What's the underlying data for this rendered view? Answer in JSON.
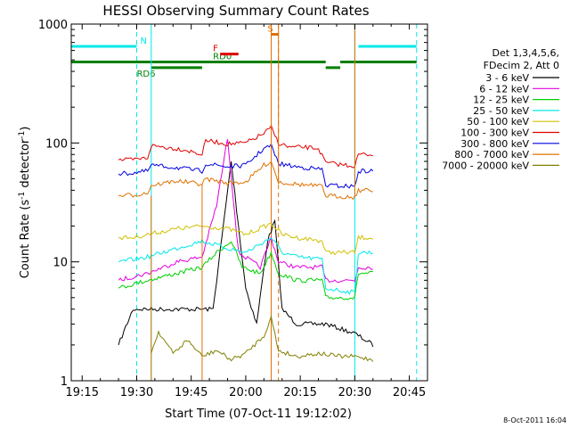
{
  "chart_data": {
    "type": "line",
    "title": "HESSI Observing Summary Count Rates",
    "xlabel": "Start Time (07-Oct-11 19:12:02)",
    "ylabel": "Count Rate (s^-1 detector^-1)",
    "ylabel_parts": {
      "main": "Count Rate (s",
      "exp1": "-1",
      "mid": " detector",
      "exp2": "-1",
      "end": ")"
    },
    "x_ticks": [
      "19:15",
      "19:30",
      "19:45",
      "20:00",
      "20:15",
      "20:30",
      "20:45"
    ],
    "y_ticks": [
      "1",
      "10",
      "100",
      "1000"
    ],
    "xlim": [
      "19:12",
      "20:50"
    ],
    "ylim": [
      1,
      1000
    ],
    "y_scale": "log",
    "legend_title": [
      "Det 1,3,4,5,6,",
      "FDecim 2, Att 0"
    ],
    "legend_placement": "right",
    "series": [
      {
        "name": "3 - 6 keV",
        "color": "#000000",
        "points": [
          [
            "19:25",
            2
          ],
          [
            "19:29",
            4
          ],
          [
            "19:37",
            4
          ],
          [
            "19:45",
            4
          ],
          [
            "19:51",
            4
          ],
          [
            "19:54",
            22
          ],
          [
            "19:56",
            70
          ],
          [
            "19:58",
            20
          ],
          [
            "20:00",
            6
          ],
          [
            "20:03",
            3
          ],
          [
            "20:06",
            15
          ],
          [
            "20:08",
            22
          ],
          [
            "20:10",
            4
          ],
          [
            "20:14",
            3
          ],
          [
            "20:22",
            3
          ],
          [
            "20:30",
            2.5
          ],
          [
            "20:35",
            2
          ]
        ]
      },
      {
        "name": "6 - 12 keV",
        "color": "#e000e0",
        "points": [
          [
            "19:25",
            7
          ],
          [
            "19:29",
            7.5
          ],
          [
            "19:33",
            8
          ],
          [
            "19:41",
            10
          ],
          [
            "19:48",
            11
          ],
          [
            "19:52",
            30
          ],
          [
            "19:55",
            110
          ],
          [
            "19:58",
            12
          ],
          [
            "20:04",
            9
          ],
          [
            "20:07",
            16
          ],
          [
            "20:09",
            10
          ],
          [
            "20:14",
            9
          ],
          [
            "20:21",
            9
          ],
          [
            "20:22",
            7
          ],
          [
            "20:30",
            7
          ],
          [
            "20:31",
            9
          ],
          [
            "20:35",
            9
          ]
        ]
      },
      {
        "name": "12 - 25 keV",
        "color": "#00d000",
        "points": [
          [
            "19:25",
            6
          ],
          [
            "19:29",
            6.5
          ],
          [
            "19:33",
            7
          ],
          [
            "19:41",
            8
          ],
          [
            "19:48",
            9
          ],
          [
            "19:52",
            12
          ],
          [
            "19:56",
            15
          ],
          [
            "19:59",
            9
          ],
          [
            "20:04",
            8
          ],
          [
            "20:07",
            12
          ],
          [
            "20:09",
            8
          ],
          [
            "20:14",
            7
          ],
          [
            "20:21",
            7
          ],
          [
            "20:22",
            5
          ],
          [
            "20:30",
            5
          ],
          [
            "20:31",
            8
          ],
          [
            "20:35",
            8
          ]
        ]
      },
      {
        "name": "25 - 50 keV",
        "color": "#00e8e8",
        "points": [
          [
            "19:25",
            10
          ],
          [
            "19:29",
            10.5
          ],
          [
            "19:33",
            11
          ],
          [
            "19:41",
            13
          ],
          [
            "19:48",
            15
          ],
          [
            "19:55",
            13
          ],
          [
            "20:00",
            12
          ],
          [
            "20:07",
            16
          ],
          [
            "20:10",
            12
          ],
          [
            "20:14",
            11
          ],
          [
            "20:21",
            10.5
          ],
          [
            "20:22",
            6
          ],
          [
            "20:30",
            5.5
          ],
          [
            "20:31",
            12
          ],
          [
            "20:35",
            12
          ]
        ]
      },
      {
        "name": "50 - 100 keV",
        "color": "#d0c000",
        "points": [
          [
            "19:25",
            16
          ],
          [
            "19:29",
            16
          ],
          [
            "19:33",
            17
          ],
          [
            "19:41",
            19
          ],
          [
            "19:48",
            20
          ],
          [
            "19:55",
            19
          ],
          [
            "20:00",
            17
          ],
          [
            "20:07",
            21
          ],
          [
            "20:10",
            17
          ],
          [
            "20:14",
            16
          ],
          [
            "20:21",
            15
          ],
          [
            "20:22",
            12
          ],
          [
            "20:30",
            12
          ],
          [
            "20:31",
            16
          ],
          [
            "20:35",
            16
          ]
        ]
      },
      {
        "name": "100 - 300 keV",
        "color": "#e00000",
        "points": [
          [
            "19:25",
            72
          ],
          [
            "19:29",
            72
          ],
          [
            "19:33",
            75
          ],
          [
            "19:34",
            95
          ],
          [
            "19:38",
            92
          ],
          [
            "19:43",
            88
          ],
          [
            "19:48",
            80
          ],
          [
            "19:49",
            105
          ],
          [
            "19:55",
            98
          ],
          [
            "20:00",
            100
          ],
          [
            "20:05",
            120
          ],
          [
            "20:07",
            135
          ],
          [
            "20:09",
            100
          ],
          [
            "20:12",
            92
          ],
          [
            "20:16",
            92
          ],
          [
            "20:20",
            90
          ],
          [
            "20:22",
            68
          ],
          [
            "20:30",
            64
          ],
          [
            "20:31",
            80
          ],
          [
            "20:35",
            80
          ]
        ]
      },
      {
        "name": "300 - 800 keV",
        "color": "#0000e0",
        "points": [
          [
            "19:25",
            55
          ],
          [
            "19:29",
            56
          ],
          [
            "19:33",
            58
          ],
          [
            "19:34",
            65
          ],
          [
            "19:41",
            62
          ],
          [
            "19:48",
            58
          ],
          [
            "19:49",
            67
          ],
          [
            "19:55",
            63
          ],
          [
            "20:00",
            65
          ],
          [
            "20:05",
            90
          ],
          [
            "20:07",
            95
          ],
          [
            "20:09",
            67
          ],
          [
            "20:14",
            63
          ],
          [
            "20:21",
            60
          ],
          [
            "20:22",
            44
          ],
          [
            "20:30",
            43
          ],
          [
            "20:31",
            58
          ],
          [
            "20:35",
            58
          ]
        ]
      },
      {
        "name": "800 - 7000 keV",
        "color": "#e07000",
        "points": [
          [
            "19:25",
            36
          ],
          [
            "19:29",
            36.5
          ],
          [
            "19:33",
            38
          ],
          [
            "19:34",
            44
          ],
          [
            "19:41",
            48
          ],
          [
            "19:48",
            45
          ],
          [
            "19:49",
            50
          ],
          [
            "19:55",
            46
          ],
          [
            "20:00",
            47
          ],
          [
            "20:05",
            65
          ],
          [
            "20:07",
            70
          ],
          [
            "20:09",
            47
          ],
          [
            "20:14",
            45
          ],
          [
            "20:21",
            43
          ],
          [
            "20:22",
            36
          ],
          [
            "20:30",
            35
          ],
          [
            "20:31",
            40
          ],
          [
            "20:35",
            40
          ]
        ]
      },
      {
        "name": "7000 - 20000 keV",
        "color": "#808000",
        "points": [
          [
            "19:34",
            1.7
          ],
          [
            "19:36",
            2.6
          ],
          [
            "19:40",
            1.7
          ],
          [
            "19:44",
            2.2
          ],
          [
            "19:48",
            1.6
          ],
          [
            "19:52",
            1.8
          ],
          [
            "19:56",
            1.5
          ],
          [
            "20:00",
            1.7
          ],
          [
            "20:05",
            2.4
          ],
          [
            "20:07",
            3.4
          ],
          [
            "20:09",
            1.8
          ],
          [
            "20:14",
            1.6
          ],
          [
            "20:20",
            1.7
          ],
          [
            "20:26",
            1.6
          ],
          [
            "20:30",
            1.6
          ],
          [
            "20:35",
            1.5
          ]
        ]
      }
    ],
    "step_jumps": [
      {
        "series": "800 - 7000 keV",
        "time": "19:34",
        "from": 36,
        "to": 1
      },
      {
        "series": "800 - 7000 keV",
        "time": "19:48",
        "from": 45,
        "to": 1
      },
      {
        "series": "800 - 7000 keV",
        "time": "20:07",
        "from": 70,
        "to": 1000
      },
      {
        "series": "800 - 7000 keV",
        "time": "20:09",
        "from": 1000,
        "to": 47
      },
      {
        "series": "800 - 7000 keV",
        "time": "20:30",
        "from": 35,
        "to": 1000
      }
    ],
    "flags": [
      {
        "label": "N",
        "color": "#00e8e8",
        "level": 650,
        "segments": [
          [
            "19:12",
            "19:30"
          ],
          [
            "20:31",
            "20:47"
          ]
        ]
      },
      {
        "label": "RD0",
        "color": "#008000",
        "level": 480,
        "segments": [
          [
            "19:12",
            "20:22"
          ],
          [
            "20:26",
            "20:47"
          ]
        ],
        "label_at": "19:51"
      },
      {
        "label": "RD6",
        "color": "#008000",
        "level": 430,
        "segments": [
          [
            "19:34",
            "19:48"
          ],
          [
            "20:22",
            "20:26"
          ]
        ],
        "label_at": "19:30"
      },
      {
        "label": "F",
        "color": "#e00000",
        "level": 560,
        "segments": [
          [
            "19:53",
            "19:58"
          ]
        ],
        "label_at": "19:51"
      },
      {
        "label": "S",
        "color": "#e07000",
        "level": 820,
        "segments": [
          [
            "20:07",
            "20:09"
          ]
        ],
        "label_at": "20:06"
      }
    ],
    "time_markers": [
      {
        "time": "19:30",
        "color": "#00e8e8",
        "style": "dashed"
      },
      {
        "time": "19:34",
        "color": "#00e8e8",
        "style": "solid"
      },
      {
        "time": "20:07",
        "color": "#e07000",
        "style": "solid"
      },
      {
        "time": "20:09",
        "color": "#e07000",
        "style": "dashed"
      },
      {
        "time": "20:30",
        "color": "#00e8e8",
        "style": "solid"
      },
      {
        "time": "20:47",
        "color": "#00e8e8",
        "style": "dashed"
      }
    ],
    "timestamp": "8-Oct-2011 16:04"
  }
}
